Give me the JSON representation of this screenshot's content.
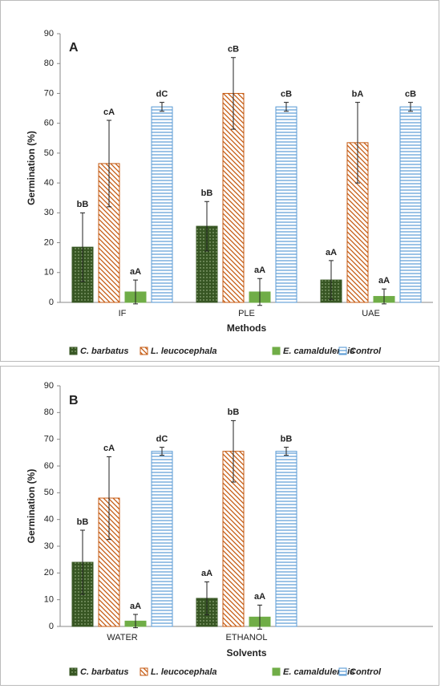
{
  "chart_data": [
    {
      "type": "bar",
      "panel": "A",
      "x_label": "Methods",
      "y_label": "Germination (%)",
      "categories": [
        "IF",
        "PLE",
        "UAE"
      ],
      "ylim": [
        0,
        90
      ],
      "yticks": [
        0,
        10,
        20,
        30,
        40,
        50,
        60,
        70,
        80,
        90
      ],
      "grid": false,
      "legend": "bottom",
      "series": [
        {
          "name": "C. barbatus",
          "color": "#375623",
          "pattern": "dots",
          "values": [
            18.5,
            25.5,
            7.5
          ],
          "errors": [
            11.5,
            8.3,
            6.5
          ],
          "letters": [
            "bB",
            "bB",
            "aA"
          ]
        },
        {
          "name": "L. leucocephala",
          "color": "#c55a11",
          "pattern": "diagonal",
          "values": [
            46.5,
            70,
            53.5
          ],
          "errors": [
            14.5,
            12,
            13.5
          ],
          "letters": [
            "cA",
            "cB",
            "bA"
          ]
        },
        {
          "name": "E. camaldulensis",
          "color": "#70ad47",
          "pattern": "solid",
          "values": [
            3.5,
            3.5,
            2
          ],
          "errors": [
            4,
            4.5,
            2.5
          ],
          "letters": [
            "aA",
            "aA",
            "aA"
          ]
        },
        {
          "name": "Control",
          "color": "#5b9bd5",
          "pattern": "horizontal",
          "values": [
            65.5,
            65.5,
            65.5
          ],
          "errors": [
            1.5,
            1.5,
            1.5
          ],
          "letters": [
            "dC",
            "cB",
            "cB"
          ]
        }
      ]
    },
    {
      "type": "bar",
      "panel": "B",
      "x_label": "Solvents",
      "y_label": "Germination (%)",
      "categories": [
        "WATER",
        "ETHANOL",
        null
      ],
      "ylim": [
        0,
        90
      ],
      "yticks": [
        0,
        10,
        20,
        30,
        40,
        50,
        60,
        70,
        80,
        90
      ],
      "grid": false,
      "legend": "bottom",
      "series": [
        {
          "name": "C. barbatus",
          "color": "#375623",
          "pattern": "dots",
          "values": [
            24,
            10.5,
            null
          ],
          "errors": [
            12,
            6.2,
            null
          ],
          "letters": [
            "bB",
            "aA",
            null
          ]
        },
        {
          "name": "L. leucocephala",
          "color": "#c55a11",
          "pattern": "diagonal",
          "values": [
            48,
            65.5,
            null
          ],
          "errors": [
            15.5,
            11.5,
            null
          ],
          "letters": [
            "cA",
            "bB",
            null
          ]
        },
        {
          "name": "E. camaldulensis",
          "color": "#70ad47",
          "pattern": "solid",
          "values": [
            2,
            3.5,
            null
          ],
          "errors": [
            2.5,
            4.5,
            null
          ],
          "letters": [
            "aA",
            "aA",
            null
          ]
        },
        {
          "name": "Control",
          "color": "#5b9bd5",
          "pattern": "horizontal",
          "values": [
            65.5,
            65.5,
            null
          ],
          "errors": [
            1.5,
            1.5,
            null
          ],
          "letters": [
            "dC",
            "bB",
            null
          ]
        }
      ]
    }
  ]
}
